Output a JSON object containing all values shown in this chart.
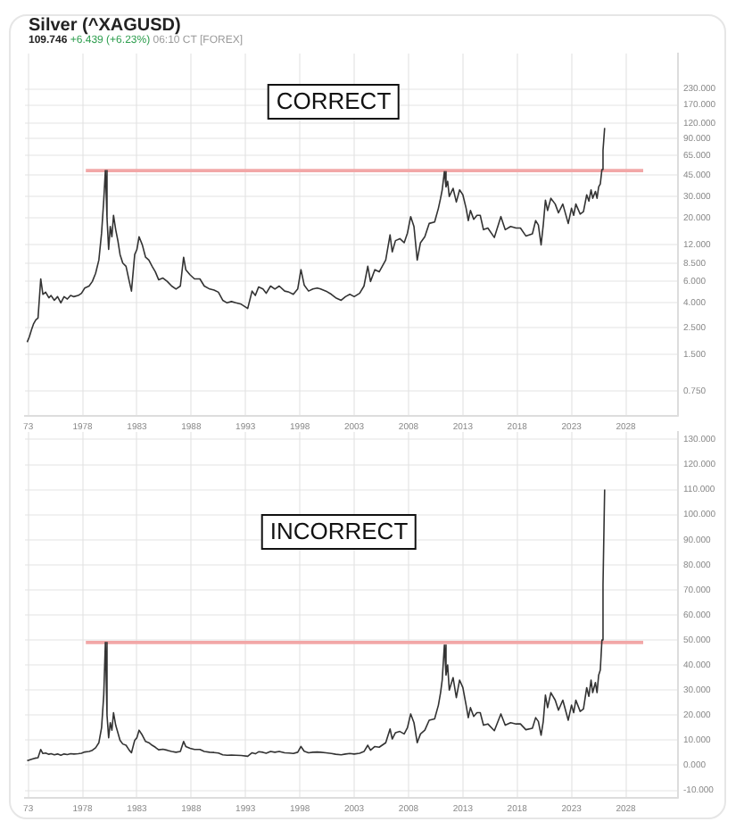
{
  "chart_data": [
    {
      "type": "line",
      "title": "Silver (^XAGUSD)",
      "subtitle": "109.746 +6.439 (+6.23%) 06:10 CT [FOREX]",
      "annotations": [
        "CORRECT"
      ],
      "log": true,
      "grid": true,
      "legend": false,
      "marker": "none",
      "xlim": [
        1972.7,
        2032.8
      ],
      "xticks": [
        {
          "value": 1973,
          "label": "73"
        },
        1978,
        1983,
        1988,
        1993,
        1998,
        2003,
        2008,
        2013,
        2018,
        2023,
        2028
      ],
      "ylim": [
        0.47,
        450
      ],
      "yticks": [
        {
          "value": 0.75,
          "label": "0.750"
        },
        {
          "value": 1.5,
          "label": "1.500"
        },
        {
          "value": 2.5,
          "label": "2.500"
        },
        {
          "value": 4,
          "label": "4.000"
        },
        {
          "value": 6,
          "label": "6.000"
        },
        {
          "value": 8.5,
          "label": "8.500"
        },
        {
          "value": 12,
          "label": "12.000"
        },
        {
          "value": 20,
          "label": "20.000"
        },
        {
          "value": 30,
          "label": "30.000"
        },
        {
          "value": 45,
          "label": "45.000"
        },
        {
          "value": 65,
          "label": "65.000"
        },
        {
          "value": 90,
          "label": "90.000"
        },
        {
          "value": 120,
          "label": "120.000"
        },
        {
          "value": 170,
          "label": "170.000"
        },
        {
          "value": 230,
          "label": "230.000"
        }
      ],
      "series": [
        {
          "color": "#333333",
          "x": [
            1972.9,
            1973.1,
            1973.3,
            1973.5,
            1973.7,
            1973.9,
            1974.15,
            1974.35,
            1974.6,
            1974.9,
            1975.1,
            1975.4,
            1975.7,
            1976.0,
            1976.3,
            1976.6,
            1976.9,
            1977.2,
            1977.6,
            1977.9,
            1978.2,
            1978.6,
            1978.9,
            1979.2,
            1979.5,
            1979.75,
            1979.95,
            1980.1,
            1980.25,
            1980.4,
            1980.55,
            1980.7,
            1980.85,
            1981.05,
            1981.25,
            1981.45,
            1981.7,
            1982.0,
            1982.3,
            1982.5,
            1982.8,
            1983.0,
            1983.2,
            1983.5,
            1983.8,
            1984.1,
            1984.4,
            1984.7,
            1985.0,
            1985.4,
            1985.8,
            1986.2,
            1986.6,
            1987.0,
            1987.3,
            1987.5,
            1987.9,
            1988.3,
            1988.8,
            1989.2,
            1989.7,
            1990.1,
            1990.5,
            1990.9,
            1991.3,
            1991.7,
            1992.1,
            1992.6,
            1993.2,
            1993.6,
            1993.9,
            1994.2,
            1994.6,
            1994.9,
            1995.3,
            1995.7,
            1996.1,
            1996.6,
            1997.0,
            1997.4,
            1997.8,
            1998.1,
            1998.4,
            1998.8,
            1999.2,
            1999.6,
            1999.9,
            2000.4,
            2000.9,
            2001.3,
            2001.8,
            2002.2,
            2002.6,
            2003.0,
            2003.5,
            2003.9,
            2004.25,
            2004.5,
            2004.9,
            2005.3,
            2005.9,
            2006.3,
            2006.5,
            2006.8,
            2007.2,
            2007.6,
            2007.9,
            2008.2,
            2008.5,
            2008.8,
            2009.1,
            2009.5,
            2009.9,
            2010.4,
            2010.75,
            2010.95,
            2011.1,
            2011.3,
            2011.45,
            2011.6,
            2011.75,
            2012.1,
            2012.4,
            2012.7,
            2013.0,
            2013.3,
            2013.5,
            2013.7,
            2014.0,
            2014.3,
            2014.6,
            2014.9,
            2015.3,
            2015.9,
            2016.5,
            2016.9,
            2017.4,
            2017.9,
            2018.3,
            2018.8,
            2019.4,
            2019.7,
            2019.95,
            2020.2,
            2020.4,
            2020.6,
            2020.8,
            2021.1,
            2021.5,
            2021.8,
            2022.2,
            2022.7,
            2023.0,
            2023.2,
            2023.4,
            2023.8,
            2024.1,
            2024.4,
            2024.6,
            2024.8,
            2024.95,
            2025.2,
            2025.35,
            2025.5,
            2025.65,
            2025.8,
            2025.9,
            2026.05
          ],
          "values": [
            1.9,
            2.1,
            2.4,
            2.7,
            2.9,
            3.0,
            6.3,
            4.7,
            4.9,
            4.4,
            4.6,
            4.2,
            4.5,
            4.0,
            4.5,
            4.3,
            4.6,
            4.5,
            4.6,
            4.8,
            5.3,
            5.5,
            6.0,
            7.0,
            9.0,
            15,
            28,
            49,
            20,
            11,
            17,
            14,
            21,
            16,
            13,
            10,
            8.5,
            8,
            6,
            5,
            10,
            11,
            14,
            12,
            9.5,
            9,
            8,
            7.2,
            6.2,
            6.4,
            6,
            5.5,
            5.2,
            5.5,
            9.5,
            7.5,
            6.8,
            6.3,
            6.3,
            5.5,
            5.2,
            5.1,
            4.9,
            4.2,
            4.0,
            4.1,
            4.0,
            3.9,
            3.6,
            5.0,
            4.6,
            5.4,
            5.2,
            4.8,
            5.5,
            5.2,
            5.5,
            5.0,
            4.9,
            4.7,
            5.2,
            7.5,
            5.6,
            5.0,
            5.2,
            5.3,
            5.2,
            5.0,
            4.7,
            4.4,
            4.2,
            4.5,
            4.7,
            4.5,
            4.8,
            5.5,
            8.0,
            6.0,
            7.5,
            7.2,
            9.0,
            14.5,
            10.5,
            13.0,
            13.5,
            12.5,
            15,
            20.5,
            17,
            9,
            12.5,
            14,
            18,
            18.5,
            24,
            29,
            34,
            48,
            36,
            40,
            30,
            35,
            27,
            34,
            31,
            24,
            19,
            23,
            19.5,
            21,
            21,
            16,
            16.5,
            13.8,
            20.5,
            16,
            17,
            16.5,
            16.5,
            14.2,
            14.8,
            19,
            17.5,
            12,
            17.5,
            28,
            23,
            29,
            26,
            22,
            26,
            18,
            24,
            21,
            26,
            21.5,
            22.5,
            31,
            27.5,
            34,
            29,
            33,
            29,
            36,
            38,
            50,
            72,
            110
          ]
        },
        {
          "type": "line",
          "color": "#f2a7a7",
          "x": [
            1978.3,
            2029.6
          ],
          "values": [
            49,
            49
          ]
        }
      ]
    },
    {
      "type": "line",
      "annotations": [
        "INCORRECT"
      ],
      "grid": true,
      "legend": false,
      "marker": "none",
      "xlim": [
        1972.7,
        2032.8
      ],
      "xticks": [
        {
          "value": 1973,
          "label": "73"
        },
        1978,
        1983,
        1988,
        1993,
        1998,
        2003,
        2008,
        2013,
        2018,
        2023,
        2028
      ],
      "ylim": [
        -13,
        133
      ],
      "yticks": [
        {
          "value": -10,
          "label": "-10.000"
        },
        {
          "value": 0,
          "label": "0.000"
        },
        {
          "value": 10,
          "label": "10.000"
        },
        {
          "value": 20,
          "label": "20.000"
        },
        {
          "value": 30,
          "label": "30.000"
        },
        {
          "value": 40,
          "label": "40.000"
        },
        {
          "value": 50,
          "label": "50.000"
        },
        {
          "value": 60,
          "label": "60.000"
        },
        {
          "value": 70,
          "label": "70.000"
        },
        {
          "value": 80,
          "label": "80.000"
        },
        {
          "value": 90,
          "label": "90.000"
        },
        {
          "value": 100,
          "label": "100.000"
        },
        {
          "value": 110,
          "label": "110.000"
        },
        {
          "value": 120,
          "label": "120.000"
        },
        {
          "value": 130,
          "label": "130.000"
        }
      ],
      "series": [
        {
          "color": "#333333",
          "x": [
            1972.9,
            1973.1,
            1973.3,
            1973.5,
            1973.7,
            1973.9,
            1974.15,
            1974.35,
            1974.6,
            1974.9,
            1975.1,
            1975.4,
            1975.7,
            1976.0,
            1976.3,
            1976.6,
            1976.9,
            1977.2,
            1977.6,
            1977.9,
            1978.2,
            1978.6,
            1978.9,
            1979.2,
            1979.5,
            1979.75,
            1979.95,
            1980.1,
            1980.25,
            1980.4,
            1980.55,
            1980.7,
            1980.85,
            1981.05,
            1981.25,
            1981.45,
            1981.7,
            1982.0,
            1982.3,
            1982.5,
            1982.8,
            1983.0,
            1983.2,
            1983.5,
            1983.8,
            1984.1,
            1984.4,
            1984.7,
            1985.0,
            1985.4,
            1985.8,
            1986.2,
            1986.6,
            1987.0,
            1987.3,
            1987.5,
            1987.9,
            1988.3,
            1988.8,
            1989.2,
            1989.7,
            1990.1,
            1990.5,
            1990.9,
            1991.3,
            1991.7,
            1992.1,
            1992.6,
            1993.2,
            1993.6,
            1993.9,
            1994.2,
            1994.6,
            1994.9,
            1995.3,
            1995.7,
            1996.1,
            1996.6,
            1997.0,
            1997.4,
            1997.8,
            1998.1,
            1998.4,
            1998.8,
            1999.2,
            1999.6,
            1999.9,
            2000.4,
            2000.9,
            2001.3,
            2001.8,
            2002.2,
            2002.6,
            2003.0,
            2003.5,
            2003.9,
            2004.25,
            2004.5,
            2004.9,
            2005.3,
            2005.9,
            2006.3,
            2006.5,
            2006.8,
            2007.2,
            2007.6,
            2007.9,
            2008.2,
            2008.5,
            2008.8,
            2009.1,
            2009.5,
            2009.9,
            2010.4,
            2010.75,
            2010.95,
            2011.1,
            2011.3,
            2011.45,
            2011.6,
            2011.75,
            2012.1,
            2012.4,
            2012.7,
            2013.0,
            2013.3,
            2013.5,
            2013.7,
            2014.0,
            2014.3,
            2014.6,
            2014.9,
            2015.3,
            2015.9,
            2016.5,
            2016.9,
            2017.4,
            2017.9,
            2018.3,
            2018.8,
            2019.4,
            2019.7,
            2019.95,
            2020.2,
            2020.4,
            2020.6,
            2020.8,
            2021.1,
            2021.5,
            2021.8,
            2022.2,
            2022.7,
            2023.0,
            2023.2,
            2023.4,
            2023.8,
            2024.1,
            2024.4,
            2024.6,
            2024.8,
            2024.95,
            2025.2,
            2025.35,
            2025.5,
            2025.65,
            2025.8,
            2025.9,
            2026.05
          ],
          "values": [
            1.9,
            2.1,
            2.4,
            2.7,
            2.9,
            3.0,
            6.3,
            4.7,
            4.9,
            4.4,
            4.6,
            4.2,
            4.5,
            4.0,
            4.5,
            4.3,
            4.6,
            4.5,
            4.6,
            4.8,
            5.3,
            5.5,
            6.0,
            7.0,
            9.0,
            15,
            28,
            49,
            20,
            11,
            17,
            14,
            21,
            16,
            13,
            10,
            8.5,
            8,
            6,
            5,
            10,
            11,
            14,
            12,
            9.5,
            9,
            8,
            7.2,
            6.2,
            6.4,
            6,
            5.5,
            5.2,
            5.5,
            9.5,
            7.5,
            6.8,
            6.3,
            6.3,
            5.5,
            5.2,
            5.1,
            4.9,
            4.2,
            4.0,
            4.1,
            4.0,
            3.9,
            3.6,
            5.0,
            4.6,
            5.4,
            5.2,
            4.8,
            5.5,
            5.2,
            5.5,
            5.0,
            4.9,
            4.7,
            5.2,
            7.5,
            5.6,
            5.0,
            5.2,
            5.3,
            5.2,
            5.0,
            4.7,
            4.4,
            4.2,
            4.5,
            4.7,
            4.5,
            4.8,
            5.5,
            8.0,
            6.0,
            7.5,
            7.2,
            9.0,
            14.5,
            10.5,
            13.0,
            13.5,
            12.5,
            15,
            20.5,
            17,
            9,
            12.5,
            14,
            18,
            18.5,
            24,
            29,
            34,
            48,
            36,
            40,
            30,
            35,
            27,
            34,
            31,
            24,
            19,
            23,
            19.5,
            21,
            21,
            16,
            16.5,
            13.8,
            20.5,
            16,
            17,
            16.5,
            16.5,
            14.2,
            14.8,
            19,
            17.5,
            12,
            17.5,
            28,
            23,
            29,
            26,
            22,
            26,
            18,
            24,
            21,
            26,
            21.5,
            22.5,
            31,
            27.5,
            34,
            29,
            33,
            29,
            36,
            38,
            50,
            72,
            110
          ]
        },
        {
          "type": "line",
          "color": "#f2a7a7",
          "x": [
            1978.3,
            2029.6
          ],
          "values": [
            49,
            49
          ]
        }
      ]
    }
  ]
}
